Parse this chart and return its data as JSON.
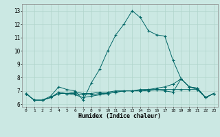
{
  "title": "",
  "xlabel": "Humidex (Indice chaleur)",
  "ylabel": "",
  "background_color": "#cbe8e3",
  "grid_color": "#b0d4cc",
  "line_color": "#006666",
  "xlim": [
    -0.5,
    23.5
  ],
  "ylim": [
    5.8,
    13.5
  ],
  "xticks": [
    0,
    1,
    2,
    3,
    4,
    5,
    6,
    7,
    8,
    9,
    10,
    11,
    12,
    13,
    14,
    15,
    16,
    17,
    18,
    19,
    20,
    21,
    22,
    23
  ],
  "yticks": [
    6,
    7,
    8,
    9,
    10,
    11,
    12,
    13
  ],
  "lines": [
    {
      "x": [
        0,
        1,
        2,
        3,
        4,
        5,
        6,
        7,
        8,
        9,
        10,
        11,
        12,
        13,
        14,
        15,
        16,
        17,
        18,
        19,
        20,
        21,
        22,
        23
      ],
      "y": [
        6.8,
        6.3,
        6.3,
        6.6,
        7.3,
        7.1,
        7.0,
        6.3,
        7.6,
        8.6,
        10.0,
        11.2,
        12.0,
        13.0,
        12.5,
        11.5,
        11.2,
        11.1,
        9.3,
        7.9,
        7.3,
        7.2,
        6.5,
        6.8
      ]
    },
    {
      "x": [
        0,
        1,
        2,
        3,
        4,
        5,
        6,
        7,
        8,
        9,
        10,
        11,
        12,
        13,
        14,
        15,
        16,
        17,
        18,
        19,
        20,
        21,
        22,
        23
      ],
      "y": [
        6.8,
        6.3,
        6.3,
        6.5,
        6.8,
        6.8,
        6.9,
        6.8,
        6.8,
        6.9,
        6.9,
        7.0,
        7.0,
        7.0,
        7.1,
        7.1,
        7.1,
        7.1,
        7.1,
        7.1,
        7.1,
        7.1,
        6.5,
        6.8
      ]
    },
    {
      "x": [
        0,
        1,
        2,
        3,
        4,
        5,
        6,
        7,
        8,
        9,
        10,
        11,
        12,
        13,
        14,
        15,
        16,
        17,
        18,
        19,
        20,
        21,
        22,
        23
      ],
      "y": [
        6.8,
        6.3,
        6.3,
        6.5,
        6.9,
        6.8,
        6.7,
        6.5,
        6.6,
        6.7,
        6.8,
        6.9,
        7.0,
        7.0,
        7.0,
        7.0,
        7.1,
        7.0,
        6.9,
        7.9,
        7.3,
        7.1,
        6.5,
        6.8
      ]
    },
    {
      "x": [
        0,
        1,
        2,
        3,
        4,
        5,
        6,
        7,
        8,
        9,
        10,
        11,
        12,
        13,
        14,
        15,
        16,
        17,
        18,
        19,
        20,
        21,
        22,
        23
      ],
      "y": [
        6.8,
        6.3,
        6.3,
        6.5,
        6.8,
        6.8,
        6.8,
        6.7,
        6.7,
        6.8,
        6.8,
        6.9,
        7.0,
        7.0,
        7.0,
        7.1,
        7.2,
        7.3,
        7.5,
        7.9,
        7.3,
        7.2,
        6.5,
        6.8
      ]
    }
  ],
  "marker": "+"
}
